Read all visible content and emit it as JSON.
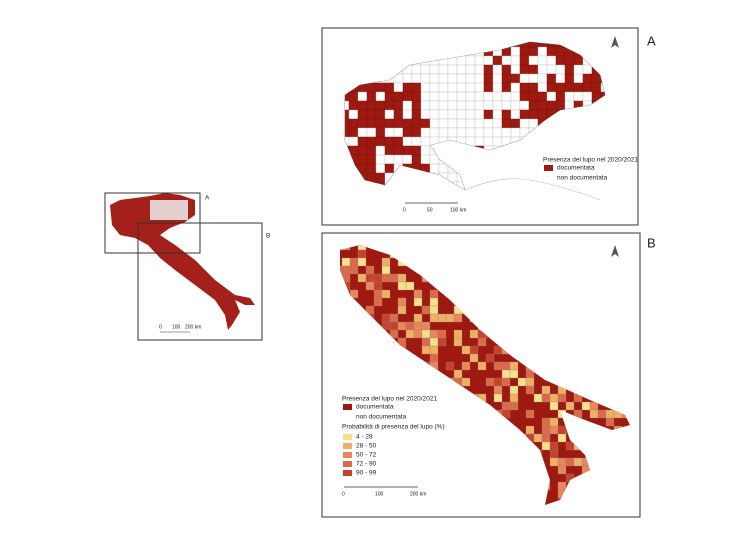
{
  "overview": {
    "labels": [
      "A",
      "B"
    ],
    "scale": [
      "0",
      "100",
      "200 km"
    ]
  },
  "panel_a": {
    "label": "A",
    "legend": {
      "title": "Presenza del lupo nel 2020/2021",
      "items": [
        "documentata",
        "non documentata"
      ]
    },
    "scale": [
      "0",
      "50",
      "100 km"
    ]
  },
  "panel_b": {
    "label": "B",
    "legend": {
      "title": "Presenza del lupo nel 2020/2021",
      "items": [
        "documentata",
        "non documentata"
      ]
    },
    "probability": {
      "title": "Probabilità di presenza del lupo (%)",
      "classes": [
        "4 - 28",
        "28 - 50",
        "50 - 72",
        "72 - 90",
        "90 - 99"
      ]
    },
    "scale": [
      "0",
      "100",
      "200 km"
    ]
  }
}
